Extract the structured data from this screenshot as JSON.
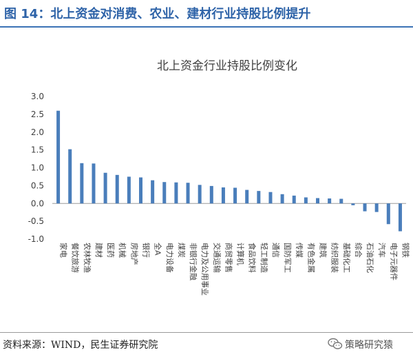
{
  "figure": {
    "title": "图 14：北上资金对消费、农业、建材行业持股比例提升"
  },
  "chart_data": {
    "type": "bar",
    "title": "北上资金行业持股比例变化",
    "xlabel": "",
    "ylabel": "",
    "ylim": [
      -1.0,
      3.0
    ],
    "yticks": [
      "3.0",
      "2.5",
      "2.0",
      "1.5",
      "1.0",
      "0.5",
      "0.0",
      "-0.5",
      "-1.0"
    ],
    "ytick_values": [
      3.0,
      2.5,
      2.0,
      1.5,
      1.0,
      0.5,
      0.0,
      -0.5,
      -1.0
    ],
    "grid": false,
    "bar_color": "#4a7ebb",
    "categories": [
      "家电",
      "餐饮旅游",
      "农林牧渔",
      "建材",
      "医药",
      "机械",
      "房地产",
      "银行",
      "全A",
      "电力设备",
      "煤炭",
      "非银行金融",
      "电力及公用事业",
      "交通运输",
      "商贸零售",
      "计算机",
      "食品饮料",
      "轻工制造",
      "通信",
      "国防军工",
      "传媒",
      "有色金属",
      "建筑",
      "纺织服装",
      "基础化工",
      "综合",
      "石油石化",
      "汽车",
      "电子元器件",
      "钢铁"
    ],
    "values": [
      2.6,
      1.52,
      1.13,
      1.12,
      0.86,
      0.8,
      0.75,
      0.73,
      0.65,
      0.6,
      0.59,
      0.58,
      0.52,
      0.49,
      0.45,
      0.44,
      0.38,
      0.35,
      0.32,
      0.26,
      0.22,
      0.17,
      0.15,
      0.14,
      0.13,
      -0.05,
      -0.22,
      -0.24,
      -0.58,
      -0.78
    ]
  },
  "source": {
    "text": "资料来源：WIND，民生证券研究院"
  },
  "watermark": {
    "text": "策略研究猿",
    "icon": "wechat-icon"
  }
}
